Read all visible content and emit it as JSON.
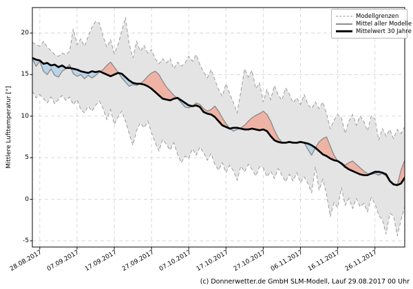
{
  "caption": "(c) Donnerwetter.de GmbH SLM-Modell, Lauf 29.08.2017 00 Uhr",
  "chart_data": {
    "type": "line",
    "title": "",
    "xlabel": "",
    "ylabel": "Mittlere Lufttemperatur [°]",
    "ylim": [
      -5.75,
      23.1
    ],
    "grid": true,
    "legend_position": "top-right",
    "yticks": [
      20,
      15,
      10,
      5,
      0,
      -5
    ],
    "ytick_labels": [
      "20",
      "15",
      "10",
      "5",
      "0",
      "-5"
    ],
    "xtick_labels": [
      "28.08.2017",
      "07.09.2017",
      "17.09.2017",
      "27.09.2017",
      "07.10.2017",
      "17.10.2017",
      "27.10.2017",
      "06.11.2017",
      "16.11.2017",
      "26.11.2017"
    ],
    "xtick_indices": [
      2,
      12,
      22,
      32,
      42,
      52,
      62,
      72,
      82,
      92
    ],
    "x_unit": "days, one value per day",
    "legend": [
      {
        "label": "Modellgrenzen",
        "style": "dashed-gray"
      },
      {
        "label": "Mittel aller Modelle",
        "style": "solid-gray"
      },
      {
        "label": "Mittelwert 30 Jahre",
        "style": "thick-black"
      }
    ],
    "colors": {
      "band": "#e4e4e4",
      "boundary": "#9a9a9a",
      "model_mean": "#8c8c8c",
      "mean_30y": "#000000",
      "warmer_fill": "#efb3a5",
      "colder_fill": "#b9d4e8",
      "grid": "#d4d4d4",
      "frame": "#000000"
    },
    "series": [
      {
        "name": "model_max",
        "values": [
          18.9,
          18.6,
          18.4,
          19.0,
          18.3,
          17.9,
          17.4,
          17.2,
          17.6,
          17.4,
          17.8,
          20.5,
          18.6,
          19.3,
          18.4,
          19.6,
          20.7,
          21.4,
          21.2,
          19.6,
          18.3,
          19.2,
          17.5,
          18.6,
          20.2,
          21.9,
          18.7,
          17.0,
          19.0,
          17.8,
          18.5,
          17.6,
          18.0,
          16.9,
          16.3,
          16.9,
          16.4,
          16.9,
          15.7,
          16.5,
          16.0,
          16.4,
          17.2,
          16.6,
          17.4,
          16.2,
          15.3,
          14.6,
          15.6,
          14.4,
          13.2,
          12.4,
          13.9,
          12.7,
          11.6,
          10.4,
          13.0,
          15.7,
          14.7,
          15.5,
          13.3,
          14.0,
          11.7,
          13.2,
          12.0,
          13.7,
          12.6,
          11.9,
          13.4,
          12.7,
          11.6,
          12.2,
          11.4,
          12.6,
          11.4,
          10.9,
          11.7,
          10.9,
          11.7,
          10.3,
          8.5,
          9.5,
          10.2,
          9.8,
          7.9,
          9.4,
          10.2,
          8.9,
          10.0,
          9.4,
          8.2,
          10.0,
          9.7,
          7.1,
          8.5,
          7.6,
          8.4,
          7.3,
          8.4,
          7.9,
          8.7
        ]
      },
      {
        "name": "model_min",
        "values": [
          13.0,
          12.2,
          12.6,
          12.1,
          11.6,
          12.3,
          11.5,
          12.0,
          12.5,
          11.9,
          12.3,
          11.4,
          12.0,
          10.8,
          10.4,
          11.2,
          10.6,
          11.3,
          11.8,
          10.9,
          9.6,
          10.8,
          9.0,
          9.9,
          10.6,
          9.4,
          7.9,
          6.5,
          8.3,
          9.2,
          8.6,
          9.4,
          8.0,
          6.8,
          5.8,
          7.2,
          6.6,
          5.9,
          6.8,
          5.4,
          4.4,
          5.2,
          4.9,
          6.1,
          5.3,
          6.3,
          5.6,
          4.7,
          5.5,
          4.2,
          3.5,
          4.4,
          3.2,
          4.1,
          3.4,
          2.3,
          4.0,
          3.3,
          4.2,
          3.6,
          2.8,
          3.9,
          3.8,
          2.7,
          3.4,
          2.5,
          3.7,
          2.9,
          2.1,
          3.0,
          2.2,
          3.2,
          2.0,
          2.7,
          1.9,
          0.8,
          3.9,
          1.1,
          2.4,
          0.6,
          -2.1,
          -0.4,
          -1.0,
          1.4,
          -0.7,
          0.1,
          -1.1,
          0.1,
          -0.9,
          -0.5,
          -1.5,
          0.2,
          -0.5,
          -1.9,
          -2.5,
          -4.2,
          -1.7,
          -2.0,
          -4.4,
          -2.5,
          -0.9
        ]
      },
      {
        "name": "model_mean",
        "values": [
          16.9,
          16.0,
          16.6,
          15.4,
          15.0,
          15.7,
          14.9,
          14.7,
          15.4,
          15.7,
          16.2,
          15.1,
          14.8,
          15.0,
          14.5,
          14.9,
          14.6,
          14.9,
          15.3,
          15.6,
          16.1,
          16.5,
          15.9,
          15.3,
          14.6,
          14.1,
          13.6,
          13.8,
          13.7,
          13.9,
          14.3,
          14.8,
          15.2,
          15.4,
          15.0,
          14.2,
          13.5,
          13.0,
          12.5,
          12.1,
          11.6,
          11.1,
          11.0,
          11.2,
          11.6,
          11.4,
          10.9,
          10.6,
          10.8,
          11.2,
          10.6,
          9.8,
          9.1,
          8.5,
          8.2,
          8.4,
          8.6,
          8.9,
          9.4,
          9.8,
          10.1,
          10.3,
          10.6,
          10.2,
          9.4,
          8.3,
          7.4,
          6.9,
          6.8,
          6.9,
          6.9,
          6.7,
          6.9,
          6.8,
          6.0,
          5.3,
          6.2,
          6.9,
          7.3,
          7.5,
          6.4,
          5.3,
          4.6,
          4.4,
          4.1,
          4.4,
          4.6,
          4.2,
          3.8,
          3.4,
          3.1,
          3.0,
          3.1,
          2.9,
          3.1,
          2.8,
          2.1,
          1.7,
          1.7,
          3.5,
          4.7
        ]
      },
      {
        "name": "mean_30y",
        "values": [
          17.0,
          16.8,
          16.7,
          16.3,
          16.4,
          16.1,
          16.2,
          15.9,
          16.1,
          15.8,
          15.8,
          15.7,
          15.6,
          15.4,
          15.3,
          15.2,
          15.4,
          15.3,
          15.4,
          15.2,
          15.0,
          14.8,
          15.0,
          15.2,
          15.1,
          14.7,
          14.3,
          14.0,
          13.9,
          13.9,
          13.8,
          13.6,
          13.3,
          12.9,
          12.5,
          12.1,
          12.0,
          11.9,
          12.1,
          12.2,
          11.9,
          11.6,
          11.3,
          11.2,
          11.3,
          11.1,
          10.5,
          10.3,
          10.2,
          9.9,
          9.4,
          8.9,
          8.7,
          8.5,
          8.6,
          8.6,
          8.5,
          8.4,
          8.4,
          8.5,
          8.4,
          8.3,
          8.4,
          8.2,
          7.6,
          7.1,
          6.9,
          6.8,
          6.8,
          6.9,
          6.8,
          6.8,
          6.9,
          6.8,
          6.7,
          6.5,
          6.2,
          5.8,
          5.4,
          5.2,
          4.9,
          4.7,
          4.6,
          4.3,
          3.9,
          3.6,
          3.4,
          3.2,
          3.0,
          2.9,
          2.9,
          3.1,
          3.3,
          3.3,
          3.2,
          3.0,
          2.2,
          1.8,
          1.7,
          1.9,
          2.6
        ]
      }
    ]
  }
}
